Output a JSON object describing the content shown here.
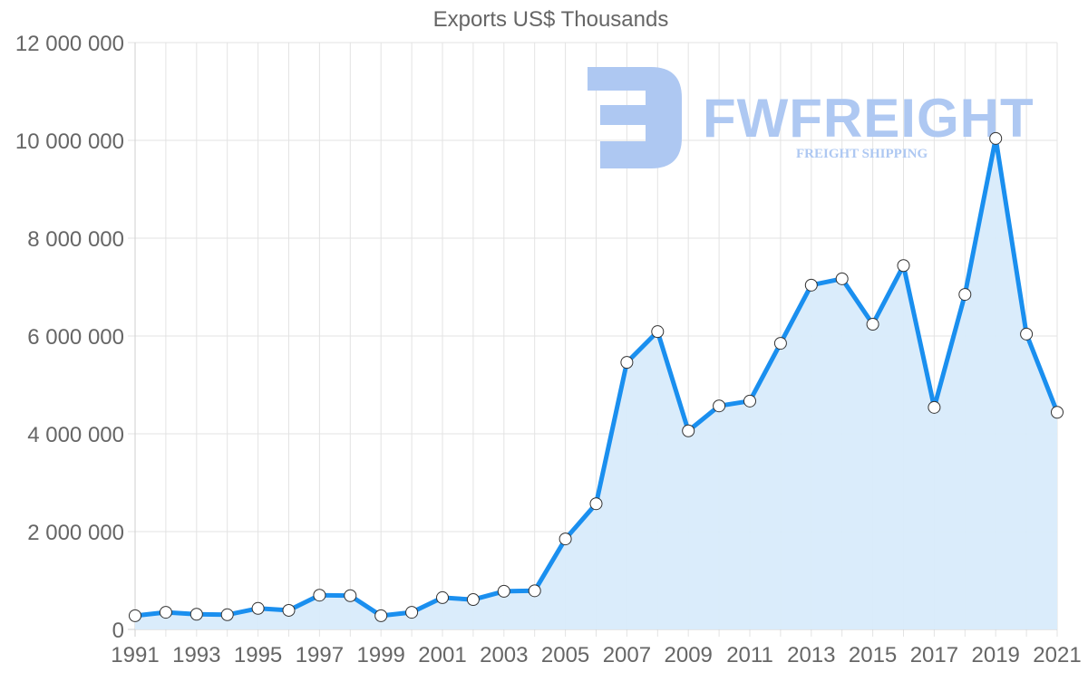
{
  "chart_data": {
    "type": "line",
    "title": "Exports US$ Thousands",
    "xlabel": "",
    "ylabel": "",
    "ylim": [
      0,
      12000000
    ],
    "yticks": [
      "0",
      "2 000 000",
      "4 000 000",
      "6 000 000",
      "8 000 000",
      "10 000 000",
      "12 000 000"
    ],
    "xticks": [
      "1991",
      "1993",
      "1995",
      "1997",
      "1999",
      "2001",
      "2003",
      "2005",
      "2007",
      "2009",
      "2011",
      "2013",
      "2015",
      "2017",
      "2019",
      "2021"
    ],
    "x": [
      1991,
      1992,
      1993,
      1994,
      1995,
      1996,
      1997,
      1998,
      1999,
      2000,
      2001,
      2002,
      2003,
      2004,
      2005,
      2006,
      2007,
      2008,
      2009,
      2010,
      2011,
      2012,
      2013,
      2014,
      2015,
      2016,
      2017,
      2018,
      2019,
      2020,
      2021
    ],
    "series": [
      {
        "name": "Exports US$ Thousands",
        "values": [
          280000,
          350000,
          310000,
          300000,
          430000,
          390000,
          700000,
          690000,
          280000,
          350000,
          650000,
          610000,
          780000,
          790000,
          1850000,
          2570000,
          5460000,
          6090000,
          4060000,
          4570000,
          4670000,
          5850000,
          7040000,
          7170000,
          6240000,
          7440000,
          4540000,
          6850000,
          10040000,
          6040000,
          4440000
        ],
        "line_color": "#1a8fef",
        "fill_color": "#d8ebfb"
      }
    ],
    "grid": true,
    "legend": "none",
    "filled_area": true
  },
  "watermark": {
    "brand": "FWFREIGHT",
    "tagline": "FREIGHT SHIPPING",
    "color": "#aec8f2"
  }
}
